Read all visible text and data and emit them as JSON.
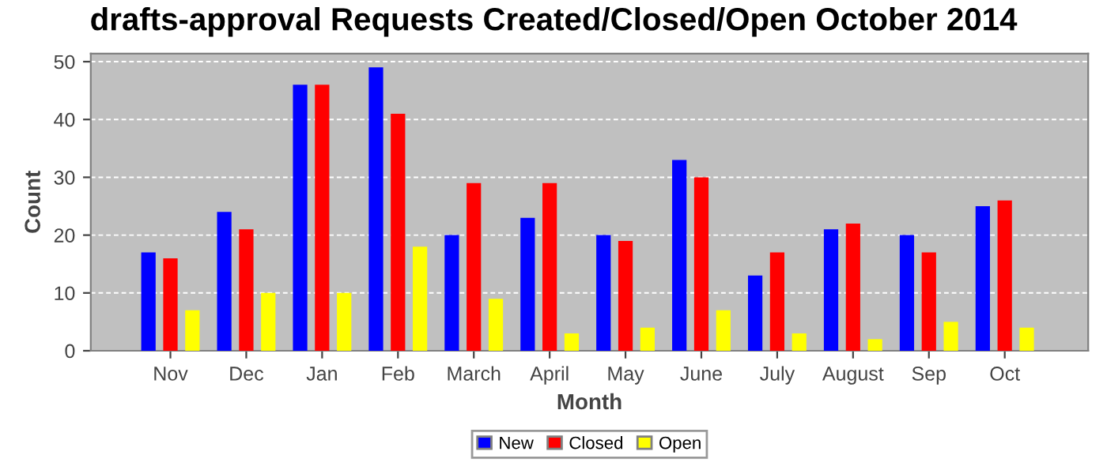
{
  "chart_data": {
    "type": "bar",
    "title": "drafts-approval Requests Created/Closed/Open October 2014",
    "xlabel": "Month",
    "ylabel": "Count",
    "categories": [
      "Nov",
      "Dec",
      "Jan",
      "Feb",
      "March",
      "April",
      "May",
      "June",
      "July",
      "August",
      "Sep",
      "Oct"
    ],
    "series": [
      {
        "name": "New",
        "color": "#0000ff",
        "values": [
          17,
          24,
          46,
          49,
          20,
          23,
          20,
          33,
          13,
          21,
          20,
          25
        ]
      },
      {
        "name": "Closed",
        "color": "#ff0000",
        "values": [
          16,
          21,
          46,
          41,
          29,
          29,
          19,
          30,
          17,
          22,
          17,
          26
        ]
      },
      {
        "name": "Open",
        "color": "#ffff00",
        "values": [
          7,
          10,
          10,
          18,
          9,
          3,
          4,
          7,
          3,
          2,
          5,
          4
        ]
      }
    ],
    "ylim": [
      0,
      51.4
    ],
    "yticks": [
      0,
      10,
      20,
      30,
      40,
      50
    ],
    "grid": "y",
    "legend": "bottom"
  }
}
